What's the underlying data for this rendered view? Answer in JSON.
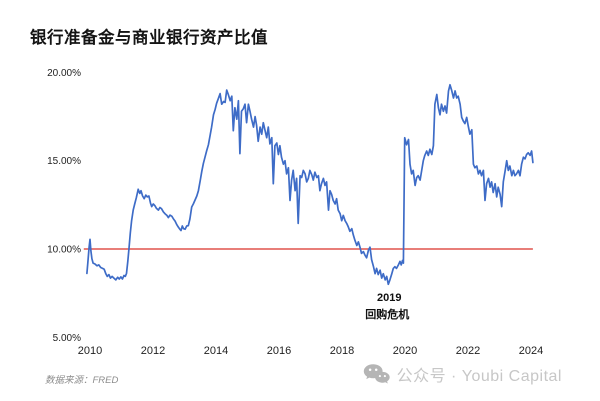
{
  "header": {
    "title": "银行准备金与商业银行资产比值"
  },
  "footer": {
    "source_label": "数据来源：FRED",
    "brand_label": "公众号 · Youbi Capital"
  },
  "colors": {
    "series_blue": "#3E6CC7",
    "reference_red": "#E0534D",
    "tick_text": "#1f1f1f",
    "brand_gray": "#c7c7c7",
    "icon_gray": "#b5b5b5"
  },
  "chart_data": {
    "type": "line",
    "title": "银行准备金与商业银行资产比值",
    "xlabel": "",
    "ylabel": "",
    "legend": "none",
    "grid": false,
    "x_axis": {
      "tick_labels": [
        "2010",
        "2012",
        "2014",
        "2016",
        "2018",
        "2020",
        "2022",
        "2024"
      ],
      "tick_values": [
        2010,
        2012,
        2014,
        2016,
        2018,
        2020,
        2022,
        2024
      ],
      "range": [
        2009.85,
        2024.06
      ]
    },
    "y_axis": {
      "tick_labels": [
        "20.00%",
        "15.00%",
        "10.00%",
        "5.00%"
      ],
      "tick_values": [
        20,
        15,
        10,
        5
      ],
      "range": [
        5,
        20
      ],
      "unit": "%"
    },
    "reference_line": {
      "value": 10,
      "color": "#E0534D"
    },
    "annotation": {
      "x": 2019.5,
      "lines": [
        "2019",
        "回购危机"
      ]
    },
    "series": [
      {
        "name": "银行准备金与商业银行资产比值",
        "color": "#3E6CC7",
        "points": [
          [
            2009.9,
            8.62
          ],
          [
            2009.93,
            9.2
          ],
          [
            2009.97,
            10.1
          ],
          [
            2010.0,
            10.55
          ],
          [
            2010.03,
            9.9
          ],
          [
            2010.06,
            9.45
          ],
          [
            2010.1,
            9.2
          ],
          [
            2010.16,
            9.15
          ],
          [
            2010.22,
            9.05
          ],
          [
            2010.28,
            9.1
          ],
          [
            2010.34,
            8.95
          ],
          [
            2010.4,
            8.9
          ],
          [
            2010.45,
            8.85
          ],
          [
            2010.5,
            8.6
          ],
          [
            2010.55,
            8.45
          ],
          [
            2010.6,
            8.55
          ],
          [
            2010.65,
            8.35
          ],
          [
            2010.7,
            8.45
          ],
          [
            2010.76,
            8.35
          ],
          [
            2010.82,
            8.25
          ],
          [
            2010.88,
            8.4
          ],
          [
            2010.93,
            8.3
          ],
          [
            2010.98,
            8.42
          ],
          [
            2011.03,
            8.3
          ],
          [
            2011.08,
            8.5
          ],
          [
            2011.12,
            8.45
          ],
          [
            2011.16,
            8.62
          ],
          [
            2011.2,
            9.3
          ],
          [
            2011.24,
            10.1
          ],
          [
            2011.28,
            10.9
          ],
          [
            2011.32,
            11.6
          ],
          [
            2011.37,
            12.2
          ],
          [
            2011.42,
            12.55
          ],
          [
            2011.47,
            12.9
          ],
          [
            2011.53,
            13.38
          ],
          [
            2011.58,
            13.15
          ],
          [
            2011.62,
            13.3
          ],
          [
            2011.67,
            13.0
          ],
          [
            2011.72,
            12.85
          ],
          [
            2011.77,
            13.05
          ],
          [
            2011.82,
            12.95
          ],
          [
            2011.87,
            13.0
          ],
          [
            2011.92,
            12.6
          ],
          [
            2011.96,
            12.4
          ],
          [
            2012.01,
            12.55
          ],
          [
            2012.06,
            12.45
          ],
          [
            2012.11,
            12.3
          ],
          [
            2012.17,
            12.2
          ],
          [
            2012.22,
            12.35
          ],
          [
            2012.27,
            12.28
          ],
          [
            2012.33,
            12.1
          ],
          [
            2012.38,
            12.0
          ],
          [
            2012.44,
            11.9
          ],
          [
            2012.49,
            11.78
          ],
          [
            2012.54,
            11.92
          ],
          [
            2012.6,
            11.85
          ],
          [
            2012.65,
            11.7
          ],
          [
            2012.7,
            11.58
          ],
          [
            2012.75,
            11.4
          ],
          [
            2012.8,
            11.25
          ],
          [
            2012.85,
            11.12
          ],
          [
            2012.89,
            11.05
          ],
          [
            2012.93,
            11.3
          ],
          [
            2012.97,
            11.15
          ],
          [
            2013.02,
            11.12
          ],
          [
            2013.07,
            11.3
          ],
          [
            2013.12,
            11.32
          ],
          [
            2013.17,
            11.7
          ],
          [
            2013.23,
            12.38
          ],
          [
            2013.28,
            12.55
          ],
          [
            2013.33,
            12.75
          ],
          [
            2013.39,
            13.0
          ],
          [
            2013.44,
            13.3
          ],
          [
            2013.5,
            13.9
          ],
          [
            2013.55,
            14.4
          ],
          [
            2013.6,
            14.85
          ],
          [
            2013.65,
            15.2
          ],
          [
            2013.7,
            15.55
          ],
          [
            2013.76,
            15.9
          ],
          [
            2013.81,
            16.4
          ],
          [
            2013.86,
            16.9
          ],
          [
            2013.92,
            17.6
          ],
          [
            2013.97,
            17.9
          ],
          [
            2014.02,
            18.25
          ],
          [
            2014.07,
            18.5
          ],
          [
            2014.13,
            18.8
          ],
          [
            2014.18,
            18.2
          ],
          [
            2014.24,
            18.35
          ],
          [
            2014.29,
            18.3
          ],
          [
            2014.34,
            19.0
          ],
          [
            2014.39,
            18.75
          ],
          [
            2014.45,
            18.4
          ],
          [
            2014.5,
            18.65
          ],
          [
            2014.55,
            16.7
          ],
          [
            2014.6,
            18.0
          ],
          [
            2014.66,
            17.35
          ],
          [
            2014.71,
            18.4
          ],
          [
            2014.76,
            15.4
          ],
          [
            2014.81,
            17.8
          ],
          [
            2014.87,
            17.95
          ],
          [
            2014.92,
            18.2
          ],
          [
            2014.97,
            17.15
          ],
          [
            2015.03,
            18.2
          ],
          [
            2015.08,
            17.8
          ],
          [
            2015.13,
            17.35
          ],
          [
            2015.19,
            16.9
          ],
          [
            2015.24,
            17.5
          ],
          [
            2015.29,
            17.0
          ],
          [
            2015.34,
            16.1
          ],
          [
            2015.4,
            16.9
          ],
          [
            2015.45,
            16.5
          ],
          [
            2015.5,
            17.15
          ],
          [
            2015.56,
            16.7
          ],
          [
            2015.61,
            16.3
          ],
          [
            2015.66,
            16.9
          ],
          [
            2015.71,
            15.95
          ],
          [
            2015.77,
            16.3
          ],
          [
            2015.82,
            13.7
          ],
          [
            2015.87,
            15.85
          ],
          [
            2015.93,
            16.0
          ],
          [
            2015.98,
            15.35
          ],
          [
            2016.03,
            15.85
          ],
          [
            2016.08,
            15.2
          ],
          [
            2016.14,
            14.8
          ],
          [
            2016.19,
            15.0
          ],
          [
            2016.24,
            14.25
          ],
          [
            2016.3,
            14.6
          ],
          [
            2016.35,
            12.75
          ],
          [
            2016.4,
            13.9
          ],
          [
            2016.45,
            14.45
          ],
          [
            2016.51,
            13.3
          ],
          [
            2016.56,
            14.0
          ],
          [
            2016.61,
            11.45
          ],
          [
            2016.67,
            14.15
          ],
          [
            2016.72,
            14.05
          ],
          [
            2016.77,
            14.45
          ],
          [
            2016.83,
            14.25
          ],
          [
            2016.88,
            13.8
          ],
          [
            2016.93,
            14.0
          ],
          [
            2016.98,
            14.45
          ],
          [
            2017.04,
            14.2
          ],
          [
            2017.09,
            13.9
          ],
          [
            2017.14,
            14.35
          ],
          [
            2017.2,
            14.05
          ],
          [
            2017.25,
            14.15
          ],
          [
            2017.3,
            13.3
          ],
          [
            2017.35,
            13.7
          ],
          [
            2017.41,
            14.0
          ],
          [
            2017.46,
            13.6
          ],
          [
            2017.51,
            13.8
          ],
          [
            2017.57,
            12.2
          ],
          [
            2017.62,
            13.3
          ],
          [
            2017.67,
            13.1
          ],
          [
            2017.72,
            12.75
          ],
          [
            2017.78,
            12.55
          ],
          [
            2017.83,
            12.85
          ],
          [
            2017.88,
            12.2
          ],
          [
            2017.94,
            12.0
          ],
          [
            2017.99,
            11.6
          ],
          [
            2018.04,
            11.9
          ],
          [
            2018.1,
            11.6
          ],
          [
            2018.15,
            11.45
          ],
          [
            2018.2,
            11.25
          ],
          [
            2018.25,
            11.0
          ],
          [
            2018.31,
            11.15
          ],
          [
            2018.36,
            10.8
          ],
          [
            2018.41,
            10.5
          ],
          [
            2018.47,
            10.2
          ],
          [
            2018.52,
            10.4
          ],
          [
            2018.57,
            10.1
          ],
          [
            2018.62,
            9.75
          ],
          [
            2018.68,
            9.85
          ],
          [
            2018.73,
            9.65
          ],
          [
            2018.78,
            9.5
          ],
          [
            2018.84,
            9.95
          ],
          [
            2018.89,
            10.1
          ],
          [
            2018.94,
            9.4
          ],
          [
            2019.0,
            9.0
          ],
          [
            2019.05,
            8.6
          ],
          [
            2019.1,
            8.9
          ],
          [
            2019.15,
            8.55
          ],
          [
            2019.21,
            8.8
          ],
          [
            2019.26,
            8.35
          ],
          [
            2019.31,
            8.6
          ],
          [
            2019.37,
            8.25
          ],
          [
            2019.42,
            8.45
          ],
          [
            2019.47,
            8.0
          ],
          [
            2019.52,
            8.25
          ],
          [
            2019.58,
            8.6
          ],
          [
            2019.63,
            8.9
          ],
          [
            2019.68,
            9.0
          ],
          [
            2019.73,
            8.9
          ],
          [
            2019.79,
            9.1
          ],
          [
            2019.84,
            9.3
          ],
          [
            2019.88,
            9.1
          ],
          [
            2019.92,
            9.35
          ],
          [
            2019.95,
            9.2
          ],
          [
            2019.99,
            16.3
          ],
          [
            2020.05,
            15.9
          ],
          [
            2020.11,
            16.2
          ],
          [
            2020.16,
            14.8
          ],
          [
            2020.21,
            14.25
          ],
          [
            2020.26,
            14.45
          ],
          [
            2020.32,
            13.6
          ],
          [
            2020.37,
            14.05
          ],
          [
            2020.42,
            14.15
          ],
          [
            2020.48,
            13.9
          ],
          [
            2020.53,
            14.45
          ],
          [
            2020.58,
            15.0
          ],
          [
            2020.63,
            15.3
          ],
          [
            2020.69,
            15.55
          ],
          [
            2020.74,
            15.3
          ],
          [
            2020.79,
            15.65
          ],
          [
            2020.85,
            15.35
          ],
          [
            2020.9,
            15.85
          ],
          [
            2020.95,
            18.2
          ],
          [
            2021.01,
            18.75
          ],
          [
            2021.06,
            18.0
          ],
          [
            2021.11,
            17.6
          ],
          [
            2021.16,
            18.2
          ],
          [
            2021.22,
            17.8
          ],
          [
            2021.27,
            18.1
          ],
          [
            2021.32,
            17.7
          ],
          [
            2021.38,
            18.95
          ],
          [
            2021.43,
            19.3
          ],
          [
            2021.48,
            19.0
          ],
          [
            2021.54,
            18.55
          ],
          [
            2021.59,
            18.95
          ],
          [
            2021.64,
            18.55
          ],
          [
            2021.69,
            18.65
          ],
          [
            2021.75,
            18.2
          ],
          [
            2021.8,
            17.45
          ],
          [
            2021.85,
            17.25
          ],
          [
            2021.9,
            17.1
          ],
          [
            2021.96,
            17.45
          ],
          [
            2022.01,
            16.95
          ],
          [
            2022.06,
            16.5
          ],
          [
            2022.12,
            16.75
          ],
          [
            2022.17,
            14.8
          ],
          [
            2022.22,
            14.6
          ],
          [
            2022.28,
            14.7
          ],
          [
            2022.33,
            14.25
          ],
          [
            2022.38,
            14.45
          ],
          [
            2022.43,
            14.15
          ],
          [
            2022.49,
            14.45
          ],
          [
            2022.54,
            12.75
          ],
          [
            2022.59,
            13.7
          ],
          [
            2022.65,
            14.0
          ],
          [
            2022.7,
            13.5
          ],
          [
            2022.75,
            13.8
          ],
          [
            2022.8,
            13.2
          ],
          [
            2022.86,
            13.7
          ],
          [
            2022.91,
            12.95
          ],
          [
            2022.96,
            13.5
          ],
          [
            2023.02,
            13.1
          ],
          [
            2023.07,
            12.4
          ],
          [
            2023.12,
            13.8
          ],
          [
            2023.18,
            14.45
          ],
          [
            2023.23,
            15.0
          ],
          [
            2023.28,
            14.45
          ],
          [
            2023.33,
            14.7
          ],
          [
            2023.39,
            14.15
          ],
          [
            2023.44,
            14.45
          ],
          [
            2023.49,
            14.15
          ],
          [
            2023.54,
            14.25
          ],
          [
            2023.6,
            14.45
          ],
          [
            2023.65,
            14.15
          ],
          [
            2023.7,
            14.8
          ],
          [
            2023.76,
            15.2
          ],
          [
            2023.81,
            15.1
          ],
          [
            2023.86,
            15.35
          ],
          [
            2023.91,
            15.45
          ],
          [
            2023.97,
            15.3
          ],
          [
            2024.02,
            15.55
          ],
          [
            2024.06,
            14.9
          ]
        ]
      }
    ]
  }
}
